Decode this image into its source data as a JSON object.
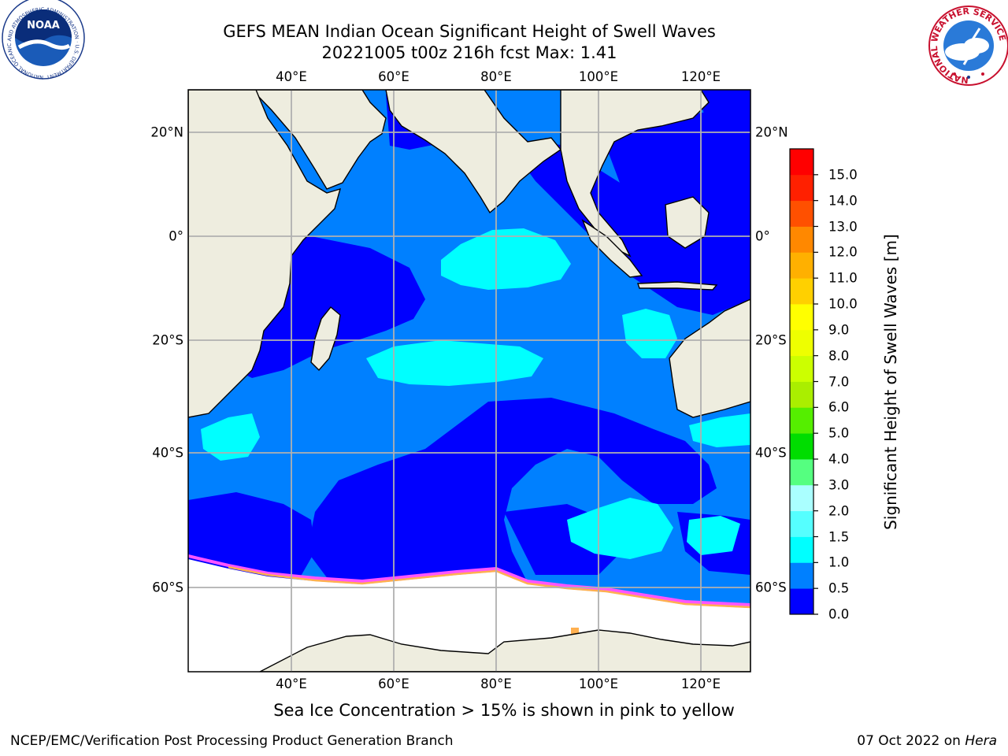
{
  "title": {
    "line1": "GEFS MEAN Indian Ocean Significant Height of Swell Waves",
    "line2": "20221005 t00z 216h fcst   Max: 1.41"
  },
  "map": {
    "lon_labels": [
      "40°E",
      "60°E",
      "80°E",
      "100°E",
      "120°E"
    ],
    "lat_labels": [
      "20°N",
      "0°",
      "20°S",
      "40°S",
      "60°S"
    ],
    "colors": {
      "land": "#EEEDDF",
      "ice_free_shelf": "#FFFFFF",
      "grid": "#B0B0B0",
      "swell_0_0_5": "#0000FF",
      "swell_0_5_1_0": "#0080FF",
      "swell_1_0_1_5": "#00FFFF",
      "ice_pink": "#FF55FF",
      "ice_orange": "#FFB050"
    }
  },
  "colorbar": {
    "label": "Significant Height of Swell Waves [m]",
    "ticks": [
      "0.0",
      "0.5",
      "1.0",
      "1.5",
      "2.0",
      "3.0",
      "4.0",
      "5.0",
      "6.0",
      "7.0",
      "8.0",
      "9.0",
      "10.0",
      "11.0",
      "12.0",
      "13.0",
      "14.0",
      "15.0"
    ],
    "colors": [
      "#0000FF",
      "#0080FF",
      "#00FFFF",
      "#55FFFF",
      "#AAFFFF",
      "#55FF80",
      "#00DD00",
      "#55EE00",
      "#AAEE00",
      "#CCFF00",
      "#EEFF00",
      "#FFFF00",
      "#FFD000",
      "#FFB000",
      "#FF8800",
      "#FF5000",
      "#FF2000",
      "#FF0000"
    ]
  },
  "caption": "Sea Ice Concentration > 15% is shown in pink to yellow",
  "footer": {
    "left": "NCEP/EMC/Verification Post Processing Product Generation Branch",
    "right_prefix": "07 Oct 2022 on ",
    "right_host": "Hera"
  },
  "logos": {
    "noaa_text": "NOAA",
    "noaa_ring": "NATIONAL OCEANIC AND ATMOSPHERIC ADMINISTRATION · U.S. DEPARTMENT OF COMMERCE",
    "nws_ring": "NATIONAL WEATHER SERVICE"
  }
}
